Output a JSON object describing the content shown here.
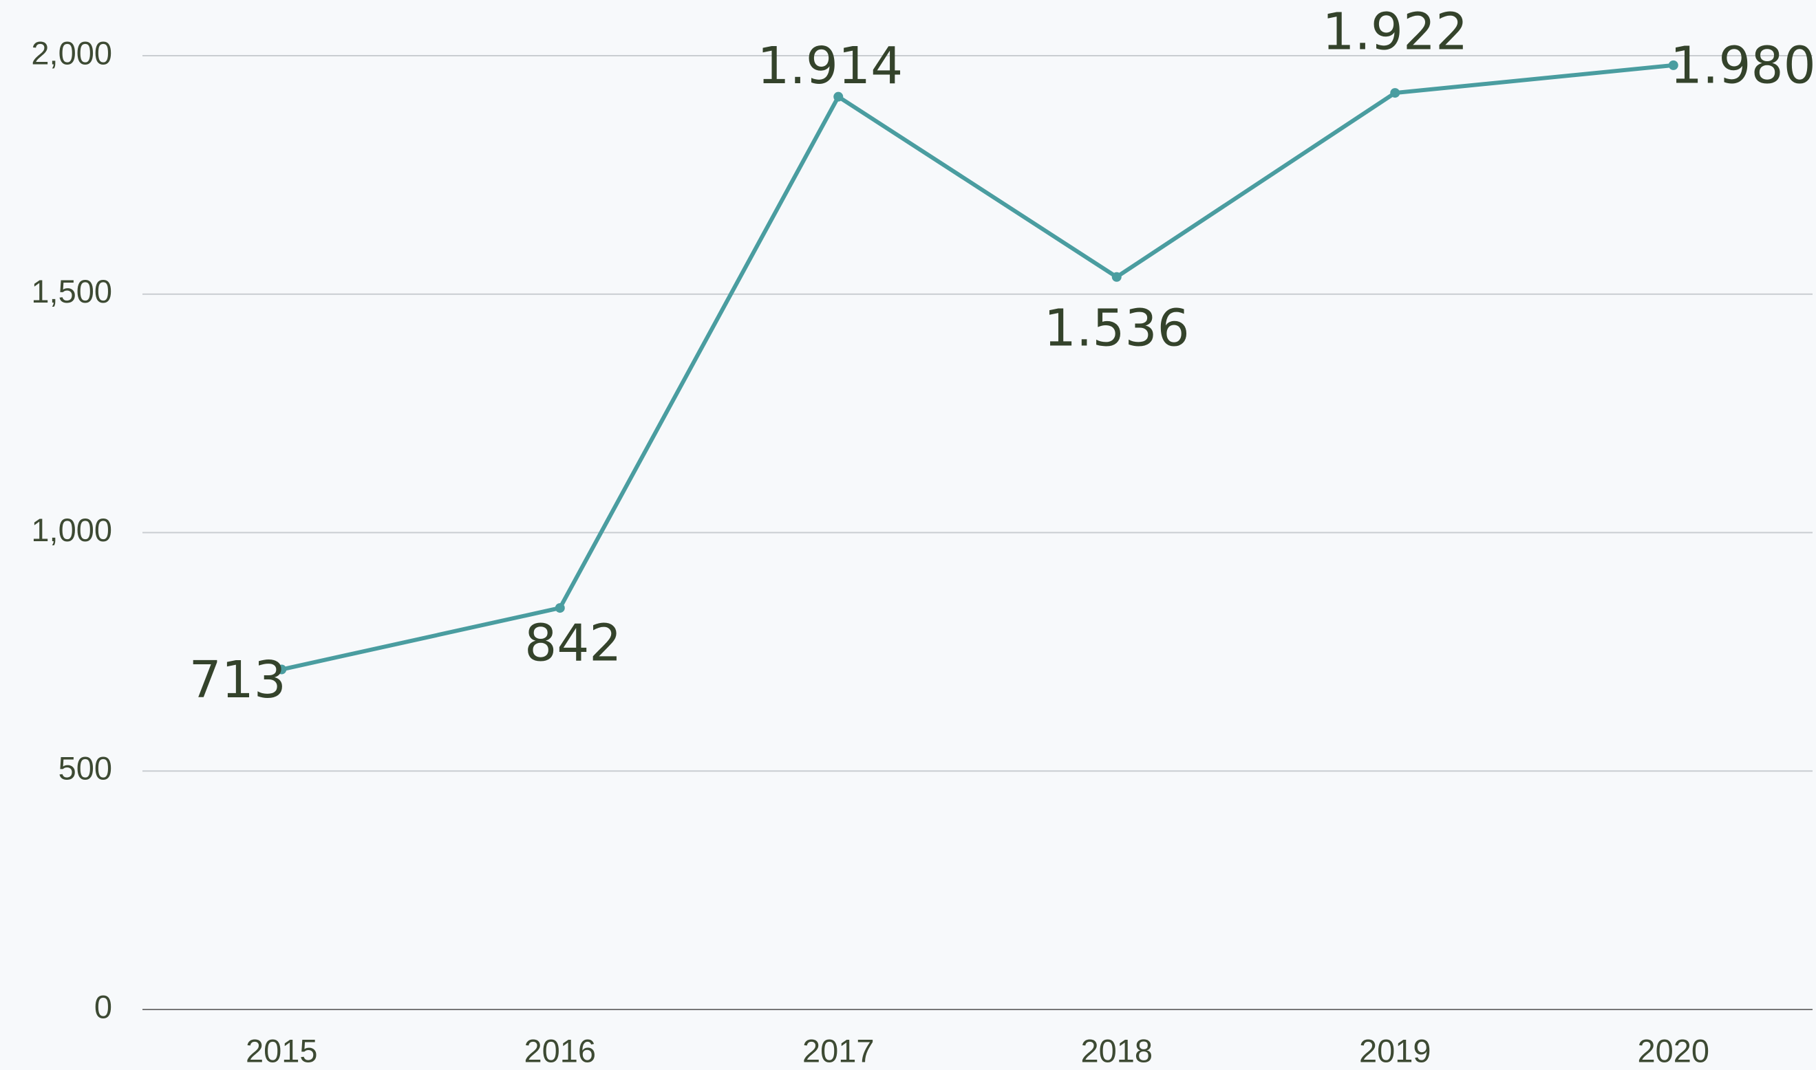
{
  "chart_data": {
    "type": "line",
    "categories": [
      "2015",
      "2016",
      "2017",
      "2018",
      "2019",
      "2020"
    ],
    "series": [
      {
        "color": "#4a9da0",
        "values": [
          713,
          842,
          1914,
          1536,
          1922,
          1980
        ],
        "value_labels": [
          "713",
          "842",
          "1.914",
          "1.536",
          "1.922",
          "1.980"
        ]
      }
    ],
    "ylim": [
      0,
      2000
    ],
    "yticks": [
      0,
      500,
      {
        "value": 1000,
        "label": "1,000"
      },
      {
        "value": 1500,
        "label": "1,500"
      },
      {
        "value": 2000,
        "label": "2,000"
      }
    ],
    "grid": true
  }
}
